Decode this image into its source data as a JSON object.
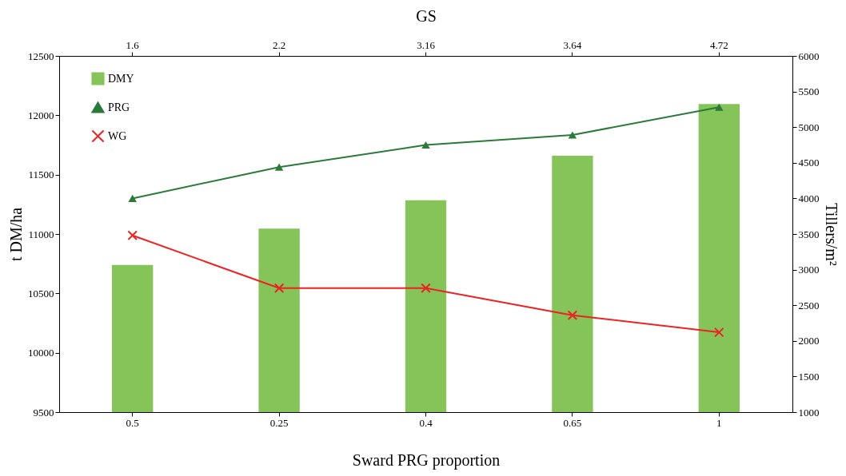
{
  "chart_data": {
    "type": "bar",
    "xlabel": "Sward PRG proportion",
    "ylabel": "t DM/ha",
    "y2label": "Tillers/m²",
    "x2label": "GS",
    "categories": [
      "0.5",
      "0.25",
      "0.4",
      "0.65",
      "1"
    ],
    "annotations": [
      {
        "text": "1.6",
        "x": "0.5"
      },
      {
        "text": "2.2",
        "x": "0.25"
      },
      {
        "text": "3.16",
        "x": "0.4"
      },
      {
        "text": "3.64",
        "x": "0.65"
      },
      {
        "text": "4.72",
        "x": "1"
      }
    ],
    "series": [
      {
        "name": "DMY",
        "color": "#84c459",
        "values": [
          10740,
          11045,
          11285,
          11660,
          12095
        ]
      },
      {
        "name": "PRG",
        "type": "line",
        "axis": "y2",
        "marker": "triangle",
        "color": "#2a7a3a",
        "values": [
          4000,
          4440,
          4750,
          4890,
          5280
        ]
      },
      {
        "name": "WG",
        "type": "line",
        "axis": "y2",
        "marker": "cross",
        "color": "#ee2222",
        "values": [
          3480,
          2740,
          2740,
          2360,
          2120
        ]
      }
    ],
    "ylim": [
      9500,
      12500
    ],
    "yticks": [
      9500,
      10000,
      10500,
      11000,
      11500,
      12000,
      12500
    ],
    "y2lim": [
      1000,
      6000
    ],
    "y2ticks": [
      1000,
      1500,
      2000,
      2500,
      3000,
      3500,
      4000,
      4500,
      5000,
      5500,
      6000
    ],
    "grid": false,
    "legend": "top left"
  }
}
